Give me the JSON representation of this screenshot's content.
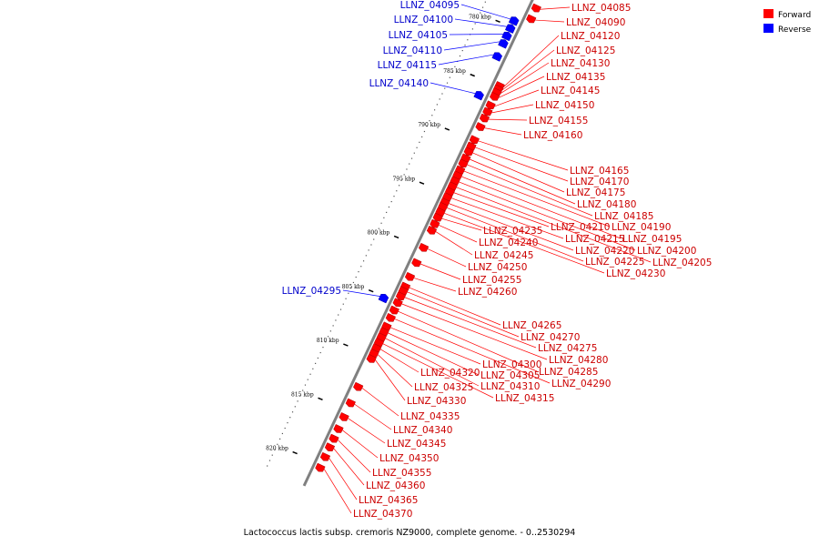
{
  "caption": "Lactococcus lactis subsp. cremoris NZ9000, complete genome. - 0..2530294",
  "legend": [
    {
      "label": "Forward",
      "color": "#ff0000"
    },
    {
      "label": "Reverse",
      "color": "#0000ff"
    }
  ],
  "colors": {
    "forward": "#ff0000",
    "reverse": "#0000ff",
    "axis": "#808080",
    "forward_label": "#cc0000",
    "reverse_label": "#0000cc"
  },
  "axis": {
    "unit": "kbp",
    "start_kbp": 777,
    "end_kbp": 822
  },
  "ticks": [
    {
      "label": "780 kbp",
      "kbp": 780
    },
    {
      "label": "785 kbp",
      "kbp": 785
    },
    {
      "label": "790 kbp",
      "kbp": 790
    },
    {
      "label": "795 kbp",
      "kbp": 795
    },
    {
      "label": "800 kbp",
      "kbp": 800
    },
    {
      "label": "805 kbp",
      "kbp": 805
    },
    {
      "label": "810 kbp",
      "kbp": 810
    },
    {
      "label": "815 kbp",
      "kbp": 815
    },
    {
      "label": "820 kbp",
      "kbp": 820
    }
  ],
  "reverse_genes": [
    {
      "name": "LLNZ_04095",
      "kbp": 779.2
    },
    {
      "name": "LLNZ_04100",
      "kbp": 779.9
    },
    {
      "name": "LLNZ_04105",
      "kbp": 780.6
    },
    {
      "name": "LLNZ_04110",
      "kbp": 781.3
    },
    {
      "name": "LLNZ_04115",
      "kbp": 782.5
    },
    {
      "name": "LLNZ_04140",
      "kbp": 786.1
    },
    {
      "name": "LLNZ_04295",
      "kbp": 804.9
    }
  ],
  "forward_genes": [
    {
      "name": "LLNZ_04085",
      "kbp": 777.4
    },
    {
      "name": "LLNZ_04090",
      "kbp": 778.4
    },
    {
      "name": "LLNZ_04120",
      "kbp": 784.6
    },
    {
      "name": "LLNZ_04125",
      "kbp": 784.9
    },
    {
      "name": "LLNZ_04130",
      "kbp": 785.2
    },
    {
      "name": "LLNZ_04135",
      "kbp": 785.6
    },
    {
      "name": "LLNZ_04145",
      "kbp": 786.4
    },
    {
      "name": "LLNZ_04150",
      "kbp": 787.0
    },
    {
      "name": "LLNZ_04155",
      "kbp": 787.6
    },
    {
      "name": "LLNZ_04160",
      "kbp": 788.4
    },
    {
      "name": "LLNZ_04165",
      "kbp": 789.6
    },
    {
      "name": "LLNZ_04170",
      "kbp": 790.2
    },
    {
      "name": "LLNZ_04175",
      "kbp": 790.7
    },
    {
      "name": "LLNZ_04180",
      "kbp": 791.3
    },
    {
      "name": "LLNZ_04185",
      "kbp": 791.8
    },
    {
      "name": "LLNZ_04190",
      "kbp": 792.4
    },
    {
      "name": "LLNZ_04195",
      "kbp": 792.9
    },
    {
      "name": "LLNZ_04200",
      "kbp": 793.4
    },
    {
      "name": "LLNZ_04205",
      "kbp": 793.9
    },
    {
      "name": "LLNZ_04210",
      "kbp": 794.4
    },
    {
      "name": "LLNZ_04215",
      "kbp": 794.9
    },
    {
      "name": "LLNZ_04220",
      "kbp": 795.4
    },
    {
      "name": "LLNZ_04225",
      "kbp": 795.8
    },
    {
      "name": "LLNZ_04230",
      "kbp": 796.3
    },
    {
      "name": "LLNZ_04235",
      "kbp": 796.8
    },
    {
      "name": "LLNZ_04240",
      "kbp": 797.4
    },
    {
      "name": "LLNZ_04245",
      "kbp": 798.0
    },
    {
      "name": "LLNZ_04250",
      "kbp": 799.6
    },
    {
      "name": "LLNZ_04255",
      "kbp": 801.0
    },
    {
      "name": "LLNZ_04260",
      "kbp": 802.3
    },
    {
      "name": "LLNZ_04265",
      "kbp": 803.2
    },
    {
      "name": "LLNZ_04270",
      "kbp": 803.6
    },
    {
      "name": "LLNZ_04275",
      "kbp": 804.1
    },
    {
      "name": "LLNZ_04280",
      "kbp": 804.7
    },
    {
      "name": "LLNZ_04285",
      "kbp": 805.4
    },
    {
      "name": "LLNZ_04290",
      "kbp": 806.1
    },
    {
      "name": "LLNZ_04300",
      "kbp": 806.9
    },
    {
      "name": "LLNZ_04305",
      "kbp": 807.4
    },
    {
      "name": "LLNZ_04310",
      "kbp": 807.9
    },
    {
      "name": "LLNZ_04315",
      "kbp": 808.4
    },
    {
      "name": "LLNZ_04320",
      "kbp": 808.9
    },
    {
      "name": "LLNZ_04325",
      "kbp": 809.4
    },
    {
      "name": "LLNZ_04330",
      "kbp": 809.9
    },
    {
      "name": "LLNZ_04335",
      "kbp": 812.5
    },
    {
      "name": "LLNZ_04340",
      "kbp": 814.0
    },
    {
      "name": "LLNZ_04345",
      "kbp": 815.3
    },
    {
      "name": "LLNZ_04350",
      "kbp": 816.4
    },
    {
      "name": "LLNZ_04355",
      "kbp": 817.3
    },
    {
      "name": "LLNZ_04360",
      "kbp": 818.1
    },
    {
      "name": "LLNZ_04365",
      "kbp": 819.0
    },
    {
      "name": "LLNZ_04370",
      "kbp": 820.0
    }
  ]
}
